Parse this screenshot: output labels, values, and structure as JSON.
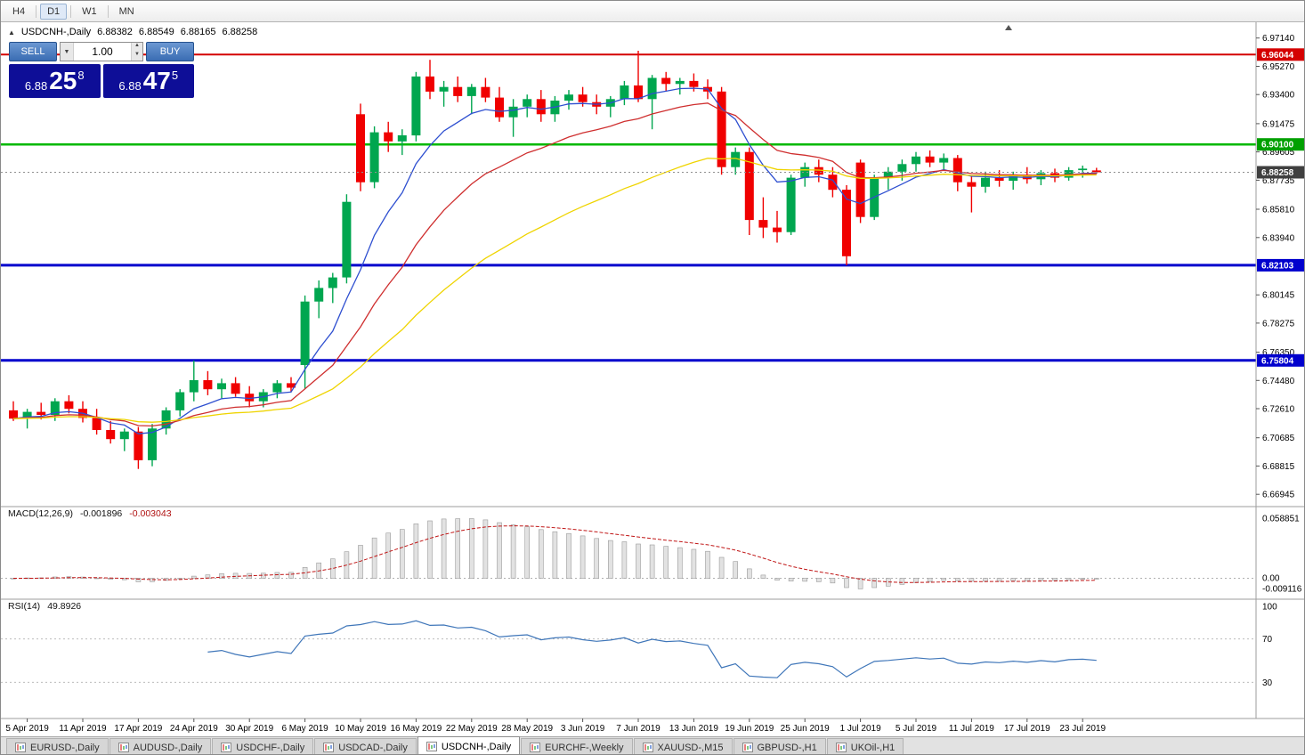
{
  "toolbar": {
    "timeframes": [
      "H4",
      "D1",
      "W1",
      "MN"
    ],
    "active": "D1"
  },
  "icons": {
    "up_triangle": "▲",
    "down_triangle": "▼",
    "one_click_toggle": "▲"
  },
  "chart_title": {
    "symbol": "USDCNH-,Daily",
    "open": "6.88382",
    "high": "6.88549",
    "low": "6.88165",
    "close": "6.88258"
  },
  "trade_panel": {
    "sell_label": "SELL",
    "buy_label": "BUY",
    "volume": "1.00",
    "sell_price": {
      "prefix": "6.88",
      "big": "25",
      "sup": "8"
    },
    "buy_price": {
      "prefix": "6.88",
      "big": "47",
      "sup": "5"
    }
  },
  "indicators": {
    "macd": {
      "label": "MACD(12,26,9)",
      "value": "-0.001896",
      "signal": "-0.003043"
    },
    "rsi": {
      "label": "RSI(14)",
      "value": "49.8926"
    }
  },
  "levels": [
    {
      "price": 6.96044,
      "label": "6.96044",
      "color": "#d40000",
      "width": 2,
      "tag": "#d40000"
    },
    {
      "price": 6.901,
      "label": "6.90100",
      "color": "#00b800",
      "width": 2.5,
      "tag": "#00a000"
    },
    {
      "price": 6.82103,
      "label": "6.82103",
      "color": "#0000cd",
      "width": 3,
      "tag": "#0000cd"
    },
    {
      "price": 6.75804,
      "label": "6.75804",
      "color": "#0000cd",
      "width": 3,
      "tag": "#0000cd"
    }
  ],
  "current_price": {
    "value": 6.88258,
    "label": "6.88258",
    "tag": "#3f3f3f"
  },
  "price_axis": {
    "plain_labels": [
      "6.97140",
      "6.95270",
      "6.93400",
      "6.91475",
      "6.89605",
      "6.87735",
      "6.85810",
      "6.83940",
      "6.80145",
      "6.78275",
      "6.76350",
      "6.74480",
      "6.72610",
      "6.70685",
      "6.68815",
      "6.66945"
    ]
  },
  "macd_axis": {
    "top": "0.058851",
    "zero": "0.00",
    "bottom": "-0.009116"
  },
  "rsi_axis": [
    "100",
    "70",
    "30"
  ],
  "tabs": [
    {
      "label": "EURUSD-,Daily",
      "active": false
    },
    {
      "label": "AUDUSD-,Daily",
      "active": false
    },
    {
      "label": "USDCHF-,Daily",
      "active": false
    },
    {
      "label": "USDCAD-,Daily",
      "active": false
    },
    {
      "label": "USDCNH-,Daily",
      "active": true
    },
    {
      "label": "EURCHF-,Weekly",
      "active": false
    },
    {
      "label": "XAUUSD-,M15",
      "active": false
    },
    {
      "label": "GBPUSD-,H1",
      "active": false
    },
    {
      "label": "UKOil-,H1",
      "active": false
    }
  ],
  "chart_data": {
    "type": "candlestick",
    "symbol": "USDCNH",
    "timeframe": "Daily",
    "title": "USDCNH-,Daily 6.88382 6.88549 6.88165 6.88258",
    "price_range": [
      6.6613,
      6.9795
    ],
    "colors": {
      "up": "#00a64f",
      "down": "#f00000"
    },
    "moving_averages": [
      {
        "period": 7,
        "method": "ema",
        "color": "#2e4fd0"
      },
      {
        "period": 16,
        "method": "ema",
        "color": "#cf2f2f"
      },
      {
        "period": 34,
        "method": "ema",
        "color": "#efd400"
      }
    ],
    "macd": {
      "fast": 12,
      "slow": 26,
      "signal": 9
    },
    "rsi": {
      "period": 14
    },
    "date_labels": [
      "5 Apr 2019",
      "11 Apr 2019",
      "17 Apr 2019",
      "24 Apr 2019",
      "30 Apr 2019",
      "6 May 2019",
      "10 May 2019",
      "16 May 2019",
      "22 May 2019",
      "28 May 2019",
      "3 Jun 2019",
      "7 Jun 2019",
      "13 Jun 2019",
      "19 Jun 2019",
      "25 Jun 2019",
      "1 Jul 2019",
      "5 Jul 2019",
      "11 Jul 2019",
      "17 Jul 2019",
      "23 Jul 2019"
    ],
    "label_bar_indices": [
      1,
      5,
      9,
      13,
      17,
      21,
      25,
      29,
      33,
      37,
      41,
      45,
      49,
      53,
      57,
      61,
      65,
      69,
      73,
      77
    ],
    "candles": [
      [
        6.725,
        6.731,
        6.718,
        6.7195
      ],
      [
        6.7195,
        6.726,
        6.713,
        6.724
      ],
      [
        6.724,
        6.73,
        6.719,
        6.722
      ],
      [
        6.722,
        6.733,
        6.718,
        6.731
      ],
      [
        6.731,
        6.735,
        6.723,
        6.726
      ],
      [
        6.726,
        6.731,
        6.717,
        6.72
      ],
      [
        6.72,
        6.726,
        6.709,
        6.712
      ],
      [
        6.712,
        6.718,
        6.703,
        6.706
      ],
      [
        6.706,
        6.713,
        6.698,
        6.711
      ],
      [
        6.711,
        6.714,
        6.6862,
        6.692
      ],
      [
        6.692,
        6.716,
        6.688,
        6.713
      ],
      [
        6.713,
        6.727,
        6.709,
        6.725
      ],
      [
        6.725,
        6.739,
        6.721,
        6.737
      ],
      [
        6.737,
        6.758,
        6.731,
        6.745
      ],
      [
        6.745,
        6.751,
        6.735,
        6.739
      ],
      [
        6.739,
        6.746,
        6.733,
        6.743
      ],
      [
        6.743,
        6.747,
        6.734,
        6.736
      ],
      [
        6.736,
        6.741,
        6.727,
        6.731
      ],
      [
        6.731,
        6.739,
        6.727,
        6.737
      ],
      [
        6.737,
        6.745,
        6.733,
        6.743
      ],
      [
        6.743,
        6.747,
        6.737,
        6.74
      ],
      [
        6.755,
        6.801,
        6.739,
        6.797
      ],
      [
        6.797,
        6.811,
        6.786,
        6.806
      ],
      [
        6.806,
        6.816,
        6.796,
        6.813
      ],
      [
        6.813,
        6.868,
        6.809,
        6.863
      ],
      [
        6.921,
        6.928,
        6.87,
        6.876
      ],
      [
        6.876,
        6.913,
        6.872,
        6.909
      ],
      [
        6.909,
        6.916,
        6.896,
        6.903
      ],
      [
        6.903,
        6.911,
        6.894,
        6.907
      ],
      [
        6.907,
        6.949,
        6.903,
        6.946
      ],
      [
        6.946,
        6.957,
        6.931,
        6.936
      ],
      [
        6.936,
        6.943,
        6.926,
        6.939
      ],
      [
        6.939,
        6.946,
        6.929,
        6.933
      ],
      [
        6.933,
        6.941,
        6.921,
        6.939
      ],
      [
        6.939,
        6.945,
        6.929,
        6.932
      ],
      [
        6.932,
        6.939,
        6.916,
        6.919
      ],
      [
        6.919,
        6.931,
        6.906,
        6.926
      ],
      [
        6.926,
        6.934,
        6.919,
        6.931
      ],
      [
        6.931,
        6.937,
        6.916,
        6.921
      ],
      [
        6.921,
        6.933,
        6.916,
        6.93
      ],
      [
        6.93,
        6.937,
        6.924,
        6.934
      ],
      [
        6.934,
        6.939,
        6.926,
        6.929
      ],
      [
        6.929,
        6.934,
        6.921,
        6.926
      ],
      [
        6.926,
        6.933,
        6.919,
        6.931
      ],
      [
        6.931,
        6.943,
        6.927,
        6.94
      ],
      [
        6.94,
        6.963,
        6.929,
        6.931
      ],
      [
        6.931,
        6.947,
        6.911,
        6.945
      ],
      [
        6.945,
        6.949,
        6.936,
        6.941
      ],
      [
        6.941,
        6.945,
        6.934,
        6.943
      ],
      [
        6.943,
        6.948,
        6.936,
        6.939
      ],
      [
        6.939,
        6.944,
        6.931,
        6.936
      ],
      [
        6.936,
        6.939,
        6.881,
        6.886
      ],
      [
        6.886,
        6.899,
        6.881,
        6.896
      ],
      [
        6.896,
        6.899,
        6.841,
        6.851
      ],
      [
        6.851,
        6.866,
        6.839,
        6.846
      ],
      [
        6.846,
        6.857,
        6.836,
        6.843
      ],
      [
        6.843,
        6.881,
        6.841,
        6.879
      ],
      [
        6.879,
        6.889,
        6.873,
        6.886
      ],
      [
        6.886,
        6.891,
        6.876,
        6.881
      ],
      [
        6.881,
        6.886,
        6.866,
        6.871
      ],
      [
        6.871,
        6.874,
        6.821,
        6.827
      ],
      [
        6.889,
        6.891,
        6.849,
        6.853
      ],
      [
        6.853,
        6.881,
        6.851,
        6.879
      ],
      [
        6.879,
        6.886,
        6.871,
        6.883
      ],
      [
        6.883,
        6.891,
        6.877,
        6.888
      ],
      [
        6.888,
        6.896,
        6.883,
        6.893
      ],
      [
        6.893,
        6.897,
        6.886,
        6.889
      ],
      [
        6.889,
        6.895,
        6.884,
        6.892
      ],
      [
        6.892,
        6.894,
        6.87,
        6.876
      ],
      [
        6.876,
        6.88,
        6.856,
        6.873
      ],
      [
        6.873,
        6.883,
        6.869,
        6.879
      ],
      [
        6.879,
        6.884,
        6.873,
        6.877
      ],
      [
        6.877,
        6.883,
        6.871,
        6.881
      ],
      [
        6.881,
        6.886,
        6.875,
        6.878
      ],
      [
        6.878,
        6.884,
        6.874,
        6.882
      ],
      [
        6.882,
        6.885,
        6.876,
        6.879
      ],
      [
        6.879,
        6.886,
        6.877,
        6.884
      ],
      [
        6.884,
        6.887,
        6.879,
        6.885
      ],
      [
        6.88382,
        6.88549,
        6.88165,
        6.88258
      ]
    ]
  }
}
